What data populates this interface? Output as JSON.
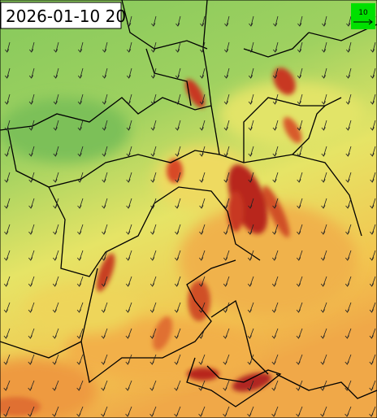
{
  "timestamp": "2026-01-10 20",
  "legend": {
    "label": "10"
  }
}
